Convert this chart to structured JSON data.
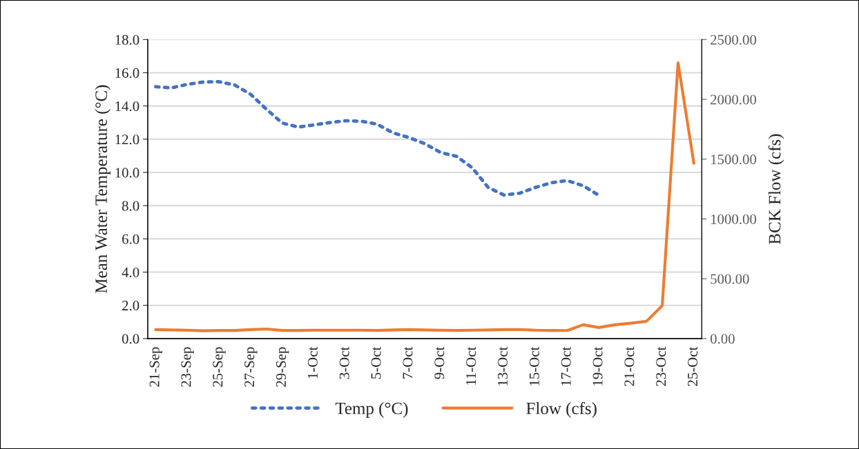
{
  "chart_data": {
    "type": "line",
    "categories": [
      "21-Sep",
      null,
      "23-Sep",
      null,
      "25-Sep",
      null,
      "27-Sep",
      null,
      "29-Sep",
      null,
      "1-Oct",
      null,
      "3-Oct",
      null,
      "5-Oct",
      null,
      "7-Oct",
      null,
      "9-Oct",
      null,
      "11-Oct",
      null,
      "13-Oct",
      null,
      "15-Oct",
      null,
      "17-Oct",
      null,
      "19-Oct",
      null,
      "21-Oct",
      null,
      "23-Oct",
      null,
      "25-Oct"
    ],
    "series": [
      {
        "name": "Temp (°C)",
        "color": "#4472c4",
        "line_style": "dotted",
        "values": [
          15.16,
          15.09,
          15.3,
          15.44,
          15.46,
          15.26,
          14.7,
          13.8,
          12.97,
          12.73,
          12.86,
          13.0,
          13.11,
          13.08,
          12.9,
          12.38,
          12.1,
          11.73,
          11.2,
          10.97,
          10.28,
          9.1,
          8.64,
          8.75,
          9.1,
          9.38,
          9.51,
          9.2,
          8.62,
          null,
          null,
          null,
          null,
          null,
          null
        ]
      },
      {
        "name": "Flow (cfs)",
        "color": "#ed7d31",
        "line_style": "solid",
        "axis": "y2",
        "values": [
          75,
          72,
          70,
          65,
          68,
          68,
          75,
          80,
          68,
          68,
          70,
          70,
          70,
          70,
          68,
          72,
          75,
          72,
          70,
          68,
          70,
          72,
          75,
          75,
          70,
          68,
          67,
          115,
          92,
          115,
          128,
          144,
          275,
          2305,
          1465
        ]
      }
    ],
    "ylabel": "Mean Water Temperature (°C)",
    "y2label": "BCK Flow (cfs)",
    "ylim": [
      0,
      18
    ],
    "yticks": [
      {
        "value": 0,
        "label": "0.0"
      },
      {
        "value": 2,
        "label": "2.0"
      },
      {
        "value": 4,
        "label": "4.0"
      },
      {
        "value": 6,
        "label": "6.0"
      },
      {
        "value": 8,
        "label": "8.0"
      },
      {
        "value": 10,
        "label": "10.0"
      },
      {
        "value": 12,
        "label": "12.0"
      },
      {
        "value": 14,
        "label": "14.0"
      },
      {
        "value": 16,
        "label": "16.0"
      },
      {
        "value": 18,
        "label": "18.0"
      }
    ],
    "y2lim": [
      0,
      2500
    ],
    "y2ticks": [
      {
        "value": 0,
        "label": "0.00"
      },
      {
        "value": 500,
        "label": "500.00"
      },
      {
        "value": 1000,
        "label": "1000.00"
      },
      {
        "value": 1500,
        "label": "1500.00"
      },
      {
        "value": 2000,
        "label": "2000.00"
      },
      {
        "value": 2500,
        "label": "2500.00"
      }
    ],
    "grid": "y",
    "legend": "bottom"
  }
}
